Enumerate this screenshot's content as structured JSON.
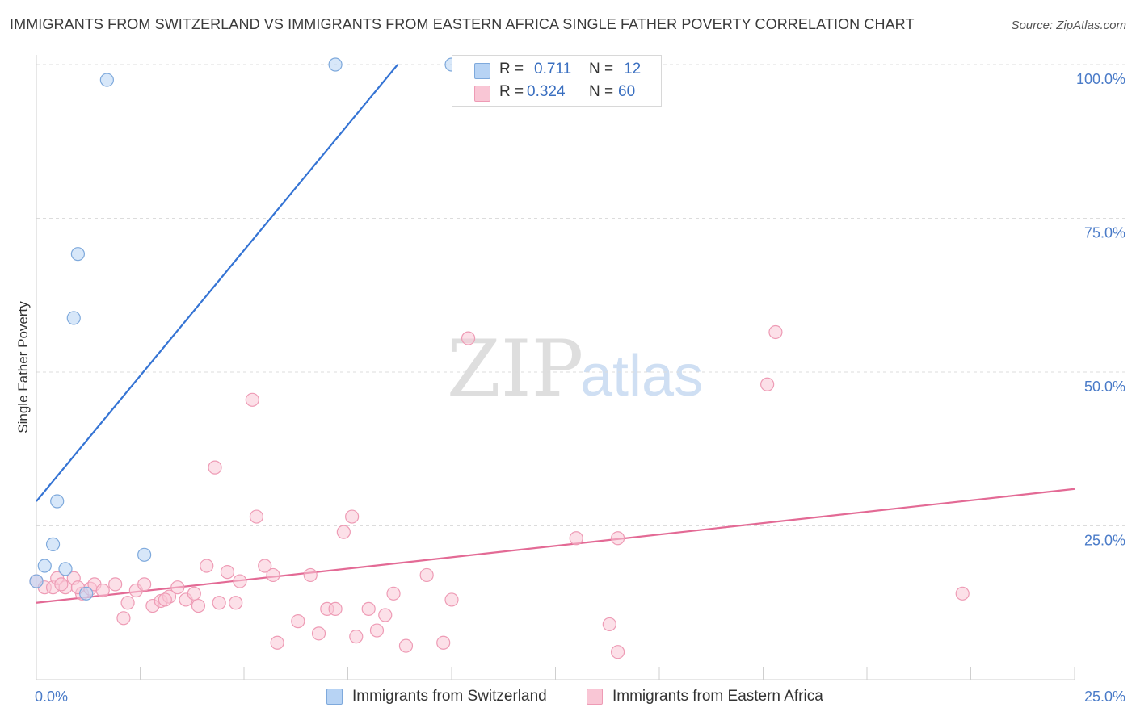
{
  "title": "IMMIGRANTS FROM SWITZERLAND VS IMMIGRANTS FROM EASTERN AFRICA SINGLE FATHER POVERTY CORRELATION CHART",
  "source": "Source: ZipAtlas.com",
  "watermark": {
    "part1": "ZIP",
    "part2": "atlas"
  },
  "legend": {
    "rows": [
      {
        "r_label": "R =",
        "r_value": "0.711",
        "n_label": "N =",
        "n_value": "12",
        "color": "#b7d3f4",
        "border": "#7ea9dc"
      },
      {
        "r_label": "R =",
        "r_value": "0.324",
        "n_label": "N =",
        "n_value": "60",
        "color": "#f9c6d5",
        "border": "#ee9bb5"
      }
    ]
  },
  "bottom_legend": [
    {
      "label": "Immigrants from Switzerland",
      "color": "#b7d3f4",
      "border": "#7ea9dc"
    },
    {
      "label": "Immigrants from Eastern Africa",
      "color": "#f9c6d5",
      "border": "#ee9bb5"
    }
  ],
  "chart_data": {
    "type": "scatter",
    "title": "IMMIGRANTS FROM SWITZERLAND VS IMMIGRANTS FROM EASTERN AFRICA SINGLE FATHER POVERTY CORRELATION CHART",
    "xlabel": "",
    "ylabel": "Single Father Poverty",
    "xlim": [
      0,
      25
    ],
    "ylim": [
      0,
      100
    ],
    "x_tick_labels": [
      "0.0%",
      "25.0%"
    ],
    "y_ticks": [
      25,
      50,
      75,
      100
    ],
    "y_tick_labels": [
      "25.0%",
      "50.0%",
      "75.0%",
      "100.0%"
    ],
    "grid": true,
    "legend_position": "top-center",
    "series": [
      {
        "name": "Immigrants from Switzerland",
        "color": "#7ea9dc",
        "fill": "#b7d3f4",
        "trend_color": "#3574d4",
        "trend": {
          "x": [
            0,
            8.7
          ],
          "y": [
            29,
            100
          ]
        },
        "points": [
          {
            "x": 0.0,
            "y": 16.0
          },
          {
            "x": 0.2,
            "y": 18.5
          },
          {
            "x": 0.4,
            "y": 22.0
          },
          {
            "x": 0.5,
            "y": 29.0
          },
          {
            "x": 0.7,
            "y": 18.0
          },
          {
            "x": 0.9,
            "y": 58.8
          },
          {
            "x": 1.0,
            "y": 69.2
          },
          {
            "x": 1.2,
            "y": 14.0
          },
          {
            "x": 1.7,
            "y": 97.5
          },
          {
            "x": 2.6,
            "y": 20.3
          },
          {
            "x": 7.2,
            "y": 100.0
          },
          {
            "x": 10.0,
            "y": 100.0
          }
        ]
      },
      {
        "name": "Immigrants from Eastern Africa",
        "color": "#ee9bb5",
        "fill": "#f9c6d5",
        "trend_color": "#e36a95",
        "trend": {
          "x": [
            0,
            25
          ],
          "y": [
            12.5,
            31
          ]
        },
        "points": [
          {
            "x": 0.0,
            "y": 16.0
          },
          {
            "x": 0.2,
            "y": 15.0
          },
          {
            "x": 0.4,
            "y": 15.0
          },
          {
            "x": 0.5,
            "y": 16.5
          },
          {
            "x": 0.7,
            "y": 15.0
          },
          {
            "x": 0.9,
            "y": 16.5
          },
          {
            "x": 1.1,
            "y": 14.0
          },
          {
            "x": 1.3,
            "y": 14.8
          },
          {
            "x": 1.4,
            "y": 15.5
          },
          {
            "x": 1.6,
            "y": 14.5
          },
          {
            "x": 1.9,
            "y": 15.5
          },
          {
            "x": 2.1,
            "y": 10.0
          },
          {
            "x": 2.2,
            "y": 12.5
          },
          {
            "x": 2.4,
            "y": 14.5
          },
          {
            "x": 2.6,
            "y": 15.5
          },
          {
            "x": 2.8,
            "y": 12.0
          },
          {
            "x": 3.0,
            "y": 12.8
          },
          {
            "x": 3.2,
            "y": 13.5
          },
          {
            "x": 3.4,
            "y": 15.0
          },
          {
            "x": 3.6,
            "y": 13.0
          },
          {
            "x": 3.8,
            "y": 14.0
          },
          {
            "x": 3.9,
            "y": 12.0
          },
          {
            "x": 4.1,
            "y": 18.5
          },
          {
            "x": 4.3,
            "y": 34.5
          },
          {
            "x": 4.4,
            "y": 12.5
          },
          {
            "x": 4.6,
            "y": 17.5
          },
          {
            "x": 4.9,
            "y": 16.0
          },
          {
            "x": 4.8,
            "y": 12.5
          },
          {
            "x": 5.3,
            "y": 26.5
          },
          {
            "x": 5.2,
            "y": 45.5
          },
          {
            "x": 5.5,
            "y": 18.5
          },
          {
            "x": 5.7,
            "y": 17.0
          },
          {
            "x": 5.8,
            "y": 6.0
          },
          {
            "x": 6.3,
            "y": 9.5
          },
          {
            "x": 6.6,
            "y": 17.0
          },
          {
            "x": 6.8,
            "y": 7.5
          },
          {
            "x": 7.0,
            "y": 11.5
          },
          {
            "x": 7.2,
            "y": 11.5
          },
          {
            "x": 7.4,
            "y": 24.0
          },
          {
            "x": 7.6,
            "y": 26.5
          },
          {
            "x": 7.7,
            "y": 7.0
          },
          {
            "x": 8.0,
            "y": 11.5
          },
          {
            "x": 8.2,
            "y": 8.0
          },
          {
            "x": 8.4,
            "y": 10.5
          },
          {
            "x": 8.6,
            "y": 14.0
          },
          {
            "x": 8.9,
            "y": 5.5
          },
          {
            "x": 9.4,
            "y": 17.0
          },
          {
            "x": 9.8,
            "y": 6.0
          },
          {
            "x": 10.0,
            "y": 13.0
          },
          {
            "x": 10.4,
            "y": 55.5
          },
          {
            "x": 13.0,
            "y": 23.0
          },
          {
            "x": 13.8,
            "y": 9.0
          },
          {
            "x": 14.0,
            "y": 23.0
          },
          {
            "x": 14.0,
            "y": 4.5
          },
          {
            "x": 17.6,
            "y": 48.0
          },
          {
            "x": 17.8,
            "y": 56.5
          },
          {
            "x": 22.3,
            "y": 14.0
          },
          {
            "x": 0.6,
            "y": 15.5
          },
          {
            "x": 1.0,
            "y": 15.0
          },
          {
            "x": 3.1,
            "y": 13.0
          }
        ]
      }
    ]
  }
}
